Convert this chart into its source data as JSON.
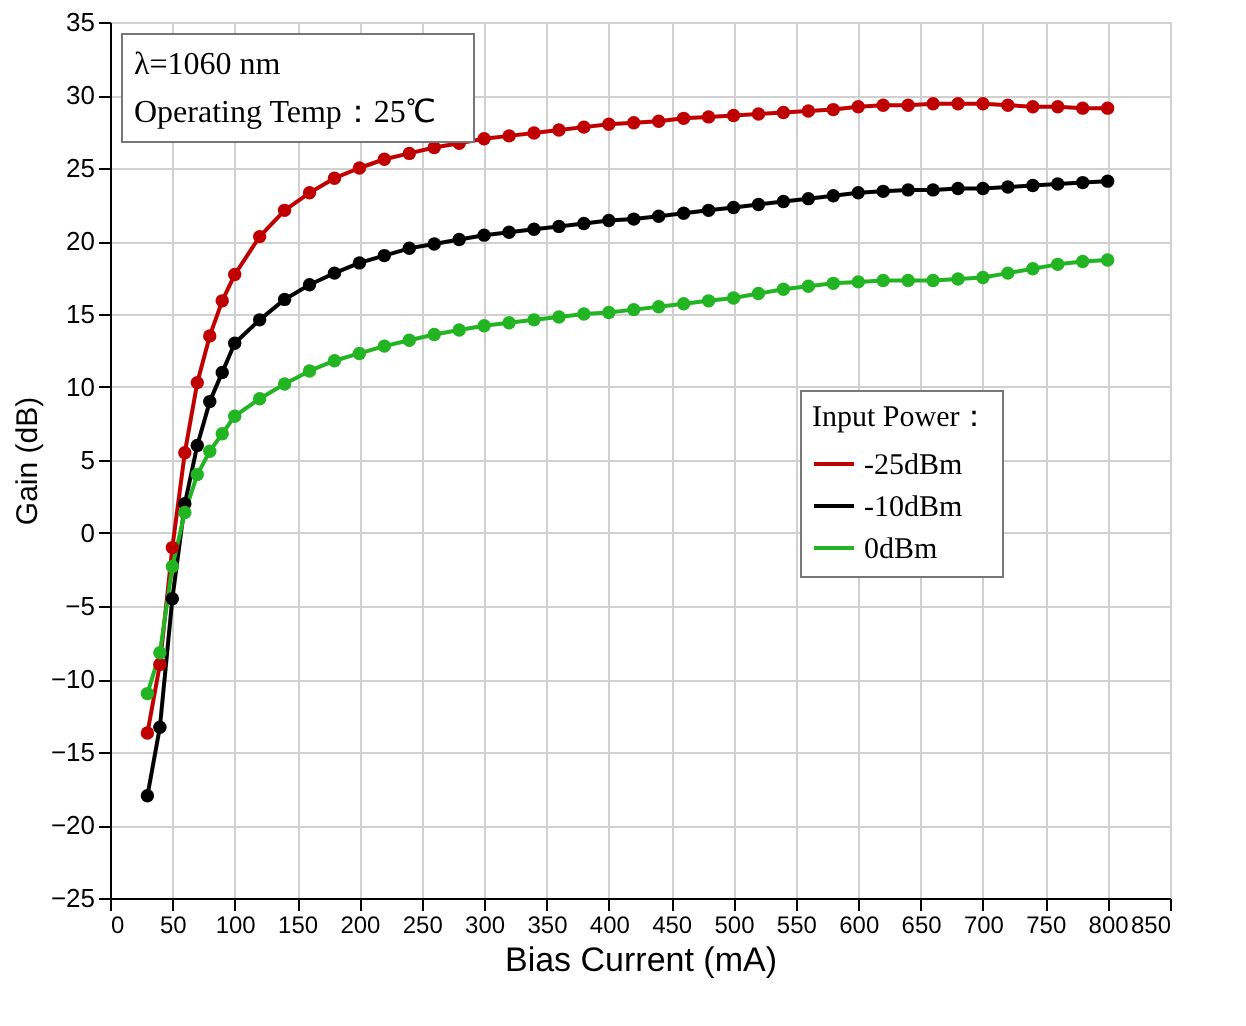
{
  "chart_data": {
    "type": "line",
    "xlabel": "Bias Current (mA)",
    "ylabel": "Gain (dB)",
    "legend_title": "Input Power：",
    "annotations": [
      "λ=1060 nm",
      "Operating Temp：25℃"
    ],
    "x": [
      30,
      40,
      50,
      60,
      70,
      80,
      90,
      100,
      120,
      140,
      160,
      180,
      200,
      220,
      240,
      260,
      280,
      300,
      320,
      340,
      360,
      380,
      400,
      420,
      440,
      460,
      480,
      500,
      520,
      540,
      560,
      580,
      600,
      620,
      640,
      660,
      680,
      700,
      720,
      740,
      760,
      780,
      800
    ],
    "series": [
      {
        "name": "-25dBm",
        "color": "#c00000",
        "values": [
          -13.7,
          -9,
          -1,
          5.5,
          10.3,
          13.5,
          15.9,
          17.7,
          20.3,
          22.1,
          23.3,
          24.3,
          25,
          25.6,
          26,
          26.4,
          26.7,
          27,
          27.2,
          27.4,
          27.6,
          27.8,
          28,
          28.1,
          28.2,
          28.4,
          28.5,
          28.6,
          28.7,
          28.8,
          28.9,
          29,
          29.2,
          29.3,
          29.3,
          29.4,
          29.4,
          29.4,
          29.3,
          29.2,
          29.2,
          29.1,
          29.1
        ]
      },
      {
        "name": "-10dBm",
        "color": "#000000",
        "values": [
          -18,
          -13.3,
          -4.5,
          2,
          6,
          9,
          11,
          13,
          14.6,
          16,
          17,
          17.8,
          18.5,
          19,
          19.5,
          19.8,
          20.1,
          20.4,
          20.6,
          20.8,
          21,
          21.2,
          21.4,
          21.5,
          21.7,
          21.9,
          22.1,
          22.3,
          22.5,
          22.7,
          22.9,
          23.1,
          23.3,
          23.4,
          23.5,
          23.5,
          23.6,
          23.6,
          23.7,
          23.8,
          23.9,
          24,
          24.1
        ]
      },
      {
        "name": "0dBm",
        "color": "#22b422",
        "values": [
          -11,
          -8.2,
          -2.3,
          1.4,
          4,
          5.6,
          6.8,
          8,
          9.2,
          10.2,
          11.1,
          11.8,
          12.3,
          12.8,
          13.2,
          13.6,
          13.9,
          14.2,
          14.4,
          14.6,
          14.8,
          15,
          15.1,
          15.3,
          15.5,
          15.7,
          15.9,
          16.1,
          16.4,
          16.7,
          16.9,
          17.1,
          17.2,
          17.3,
          17.3,
          17.3,
          17.4,
          17.5,
          17.8,
          18.1,
          18.4,
          18.6,
          18.7
        ]
      }
    ],
    "xlim": [
      0,
      850
    ],
    "xticks": [
      0,
      50,
      100,
      150,
      200,
      250,
      300,
      350,
      400,
      450,
      500,
      550,
      600,
      650,
      700,
      750,
      800,
      850
    ],
    "ylim": [
      -25,
      35
    ],
    "yticks": [
      -25,
      -20,
      -15,
      -10,
      -5,
      0,
      5,
      10,
      15,
      20,
      25,
      30,
      35
    ],
    "grid": true,
    "legend": "right",
    "marker": "circle",
    "line_style": "solid"
  }
}
